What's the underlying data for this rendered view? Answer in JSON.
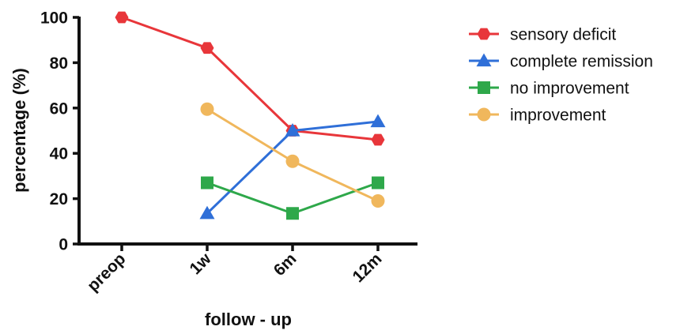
{
  "chart_data": {
    "type": "line",
    "title": "",
    "xlabel": "follow - up",
    "ylabel": "percentage (%)",
    "categories": [
      "preop",
      "1w",
      "6m",
      "12m"
    ],
    "ylim": [
      0,
      100
    ],
    "yticks": [
      "0",
      "20",
      "40",
      "60",
      "80",
      "100"
    ],
    "grid": false,
    "legend_position": "right",
    "series": [
      {
        "name": "sensory deficit",
        "color": "#e8363a",
        "marker": "hexagon",
        "values": [
          100,
          86.5,
          50,
          46
        ]
      },
      {
        "name": "complete remission",
        "color": "#2f6fd8",
        "marker": "triangle",
        "values": [
          null,
          13.5,
          50,
          54
        ]
      },
      {
        "name": "no improvement",
        "color": "#2ea84a",
        "marker": "square",
        "values": [
          null,
          27,
          13.5,
          27
        ]
      },
      {
        "name": "improvement",
        "color": "#f0b75c",
        "marker": "circle",
        "values": [
          null,
          59.5,
          36.5,
          19
        ]
      }
    ]
  }
}
